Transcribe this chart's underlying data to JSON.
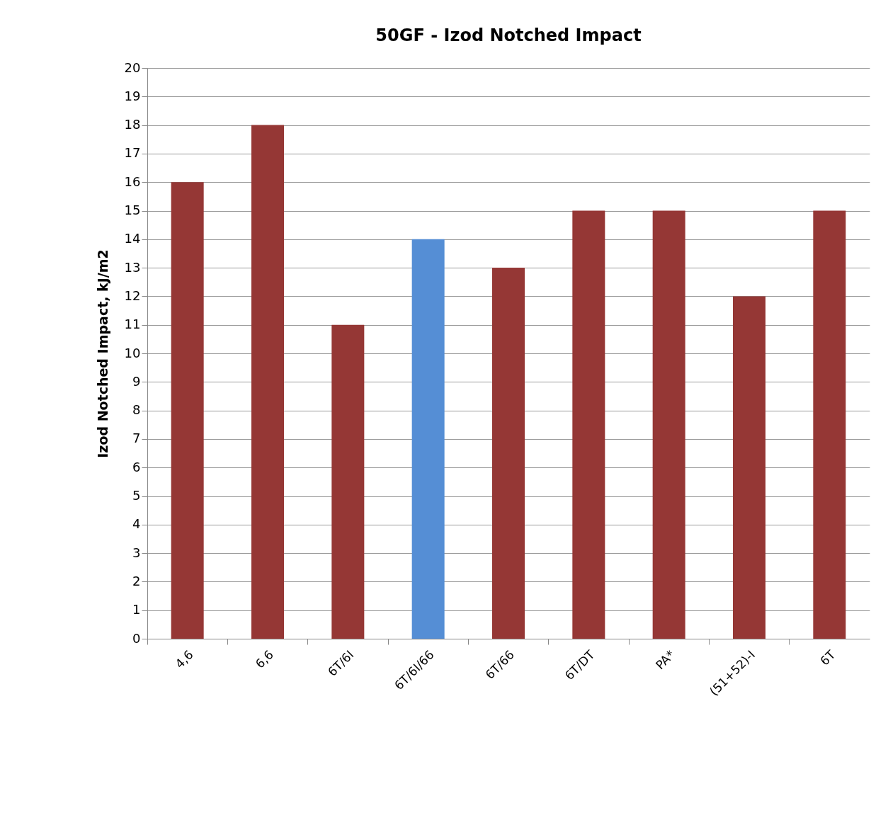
{
  "chart_data": {
    "type": "bar",
    "title": "50GF - Izod Notched Impact",
    "ylabel": "Izod Notched Impact, kJ/m2",
    "categories": [
      "4,6",
      "6,6",
      "6T/6I",
      "6T/6I/66",
      "6T/66",
      "6T/DT",
      "PA*",
      "(51+52)-I",
      "6T"
    ],
    "values": [
      16,
      18,
      11,
      14,
      13,
      15,
      15,
      12,
      15
    ],
    "colors": [
      "#953735",
      "#953735",
      "#953735",
      "#558ed5",
      "#953735",
      "#953735",
      "#953735",
      "#953735",
      "#953735"
    ],
    "ylim": [
      0,
      20
    ],
    "yticks": [
      0,
      1,
      2,
      3,
      4,
      5,
      6,
      7,
      8,
      9,
      10,
      11,
      12,
      13,
      14,
      15,
      16,
      17,
      18,
      19,
      20
    ],
    "grid": "y"
  }
}
